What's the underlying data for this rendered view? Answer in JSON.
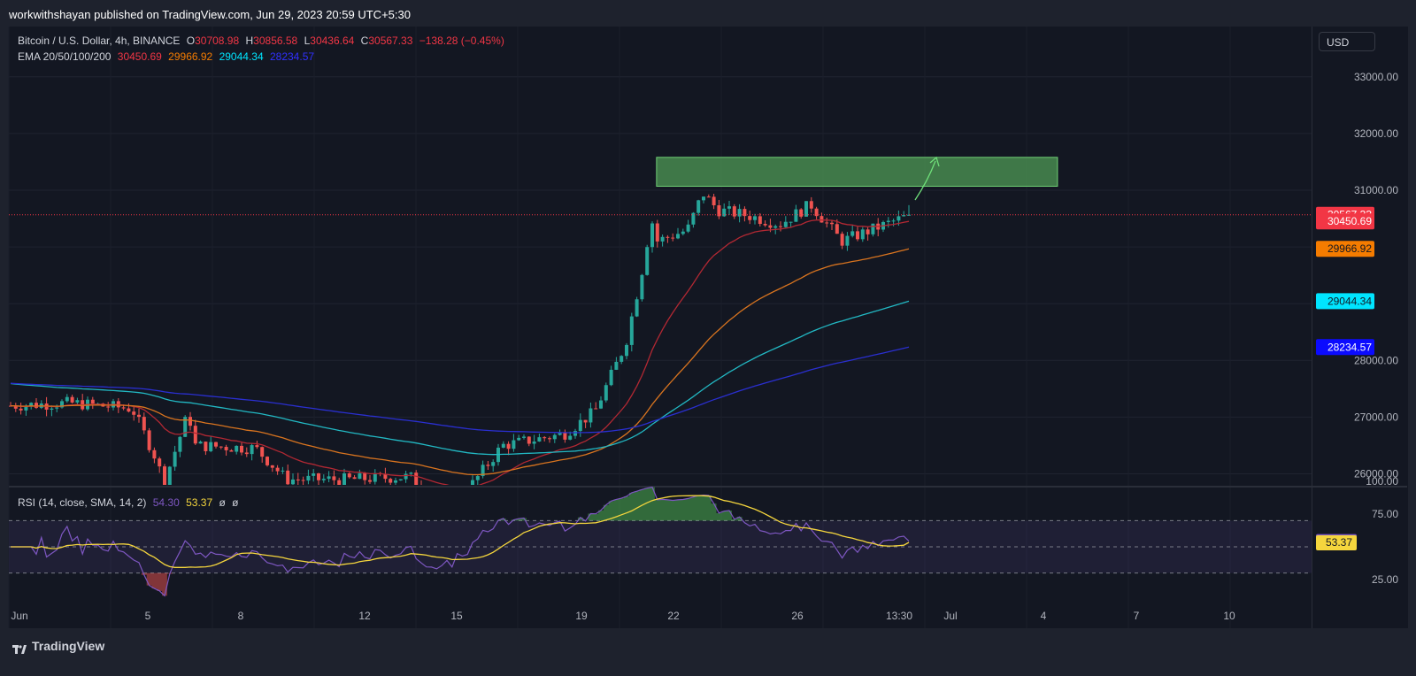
{
  "header": {
    "publisher": "workwithshayan published on TradingView.com, Jun 29, 2023 20:59 UTC+5:30"
  },
  "legend": {
    "symbol": "Bitcoin / U.S. Dollar, 4h, BINANCE",
    "open_label": "O",
    "open": "30708.98",
    "high_label": "H",
    "high": "30856.58",
    "low_label": "L",
    "low": "30436.64",
    "close_label": "C",
    "close": "30567.33",
    "change": "−138.28 (−0.45%)",
    "ema_label": "EMA 20/50/100/200",
    "ema20": "30450.69",
    "ema50": "29966.92",
    "ema100": "29044.34",
    "ema200": "28234.57"
  },
  "rsi_legend": {
    "label": "RSI (14, close, SMA, 14, 2)",
    "rsi": "54.30",
    "sma": "53.37",
    "na1": "ø",
    "na2": "ø"
  },
  "currency": "USD",
  "branding": "TradingView",
  "colors": {
    "up": "#26a69a",
    "down": "#ef5350",
    "ema20": "#b22833",
    "ema50": "#d9741f",
    "ema100": "#22b8c3",
    "ema200": "#2a2fd0",
    "rsi": "#7e57c2",
    "rsi_sma": "#f5d63d",
    "zone": "#67b96a",
    "last_price": "#f23645"
  },
  "chart_data": [
    {
      "type": "candlestick",
      "title": "Bitcoin / U.S. Dollar, 4h, BINANCE",
      "interval": "4h",
      "x_ticks": [
        "Jun",
        "5",
        "8",
        "12",
        "15",
        "19",
        "22",
        "26",
        "13:30",
        "Jul",
        "4",
        "7",
        "10"
      ],
      "y_ticks": [
        "26000.00",
        "27000.00",
        "28000.00",
        "31000.00",
        "32000.00",
        "33000.00"
      ],
      "ylim": [
        25800,
        33600
      ],
      "series": [
        {
          "name": "BTCUSD",
          "keypoints_close": [
            [
              "Jun 1",
              27200
            ],
            [
              "Jun 3",
              27250
            ],
            [
              "Jun 5",
              27150
            ],
            [
              "Jun 5 20:00",
              26200
            ],
            [
              "Jun 6",
              25800
            ],
            [
              "Jun 6 20:00",
              27100
            ],
            [
              "Jun 7",
              26500
            ],
            [
              "Jun 9",
              26450
            ],
            [
              "Jun 10",
              25900
            ],
            [
              "Jun 12",
              25900
            ],
            [
              "Jun 14",
              25950
            ],
            [
              "Jun 15",
              25500
            ],
            [
              "Jun 16",
              25800
            ],
            [
              "Jun 17",
              26500
            ],
            [
              "Jun 19",
              26700
            ],
            [
              "Jun 20",
              27100
            ],
            [
              "Jun 21",
              28300
            ],
            [
              "Jun 21 12:00",
              29500
            ],
            [
              "Jun 21 20:00",
              30500
            ],
            [
              "Jun 22",
              30100
            ],
            [
              "Jun 23",
              30300
            ],
            [
              "Jun 23 12:00",
              30950
            ],
            [
              "Jun 24",
              30650
            ],
            [
              "Jun 25",
              30550
            ],
            [
              "Jun 26",
              30400
            ],
            [
              "Jun 27",
              30750
            ],
            [
              "Jun 28",
              30100
            ],
            [
              "Jun 29",
              30567.33
            ]
          ]
        },
        {
          "name": "EMA 20",
          "last": 30450.69
        },
        {
          "name": "EMA 50",
          "last": 29966.92
        },
        {
          "name": "EMA 100",
          "last": 29044.34
        },
        {
          "name": "EMA 200",
          "last": 28234.57
        }
      ],
      "annotations": {
        "resistance_zone": [
          31070,
          31580
        ],
        "resistance_zone_dates": [
          "Jun 22",
          "Jul 5"
        ],
        "last_price": 30567.33,
        "arrow": "green arrow from last price up into resistance zone"
      },
      "price_labels": [
        {
          "value": "30567.33",
          "color": "#f23645"
        },
        {
          "value": "30450.69",
          "color": "#f23645"
        },
        {
          "value": "29966.92",
          "color": "#f57c00"
        },
        {
          "value": "29044.34",
          "color": "#00e5ff"
        },
        {
          "value": "28234.57",
          "color": "#0b0bff"
        }
      ]
    },
    {
      "type": "line",
      "title": "RSI (14, close, SMA, 14, 2)",
      "y_ticks": [
        "100.00",
        "75.00",
        "25.00"
      ],
      "bands": [
        30,
        50,
        70
      ],
      "ylim": [
        20,
        100
      ],
      "series": [
        {
          "name": "RSI",
          "last": 54.3
        },
        {
          "name": "RSI-based MA",
          "last": 53.37
        }
      ],
      "price_labels": [
        {
          "value": "54.30",
          "color": "#7e57c2"
        },
        {
          "value": "53.37",
          "color": "#f5d63d"
        }
      ]
    }
  ]
}
